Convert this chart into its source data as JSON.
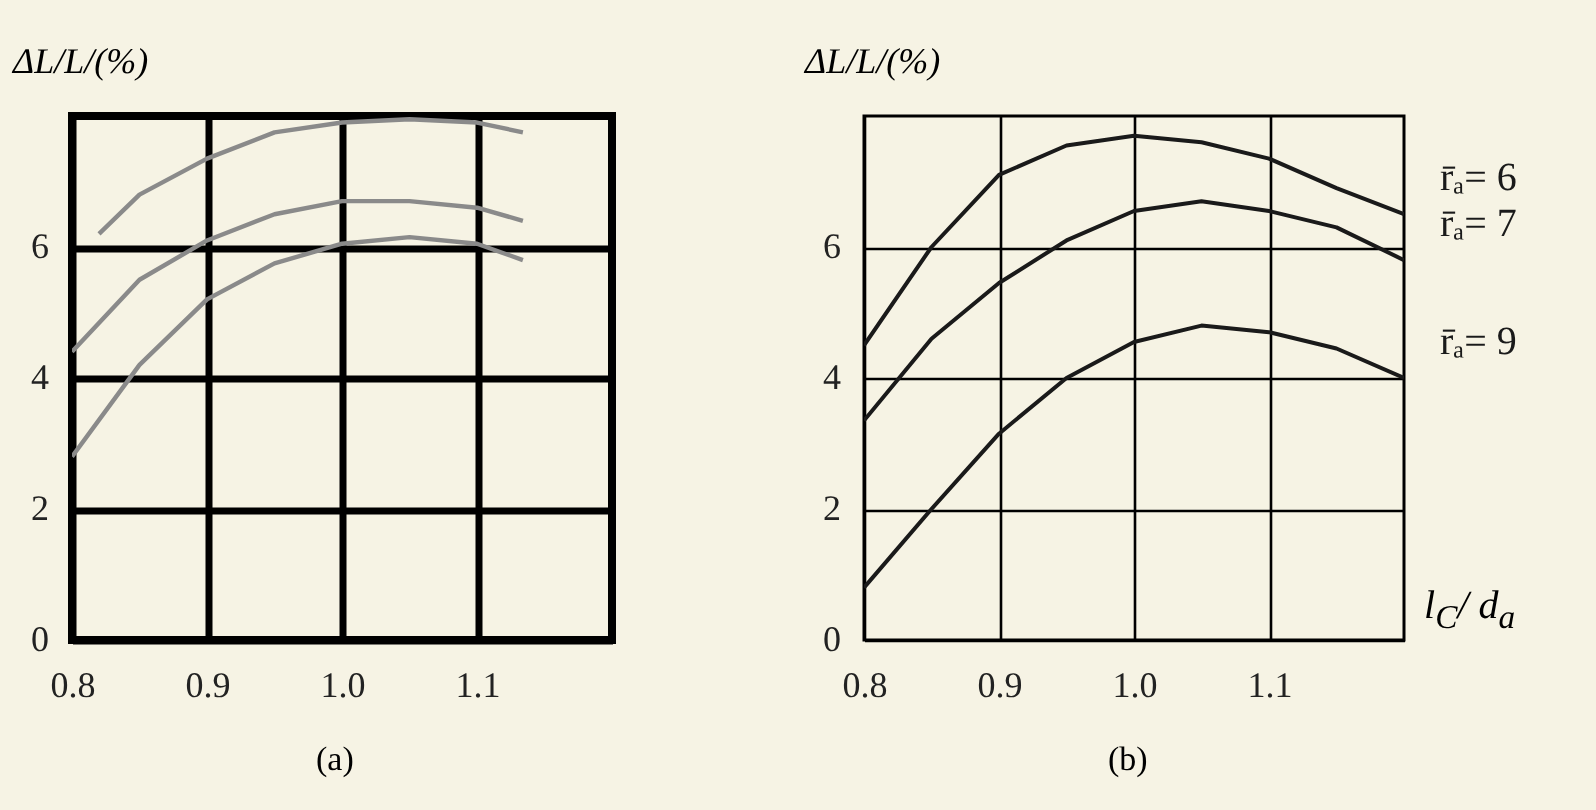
{
  "chart_data": [
    {
      "type": "line",
      "ylabel": "ΔL/L/(%)",
      "series": [
        {
          "color": "#8a8a8a",
          "x": [
            0.82,
            0.85,
            0.9,
            0.95,
            1.0,
            1.05,
            1.1,
            1.134
          ],
          "values": [
            6.2,
            6.8,
            7.35,
            7.75,
            7.9,
            7.95,
            7.9,
            7.75
          ]
        },
        {
          "color": "#8a8a8a",
          "x": [
            0.8,
            0.85,
            0.9,
            0.95,
            1.0,
            1.05,
            1.1,
            1.134
          ],
          "values": [
            4.4,
            5.5,
            6.1,
            6.5,
            6.7,
            6.7,
            6.6,
            6.4
          ]
        },
        {
          "color": "#8a8a8a",
          "x": [
            0.8,
            0.85,
            0.9,
            0.95,
            1.0,
            1.05,
            1.1,
            1.134
          ],
          "values": [
            2.8,
            4.2,
            5.2,
            5.75,
            6.05,
            6.15,
            6.05,
            5.8
          ]
        }
      ],
      "xlim": [
        0.8,
        1.2
      ],
      "xticks": [
        0.8,
        0.9,
        {
          "value": 1.0,
          "label": "1.0"
        },
        1.1
      ],
      "ylim": [
        0,
        8
      ],
      "yticks": [
        0,
        2,
        4,
        6
      ],
      "grid": true,
      "annotations": [
        "(a)"
      ]
    },
    {
      "type": "line",
      "ylabel": "ΔL/L/(%)",
      "xlabel": "l$_{C}$/ d$_{a}$",
      "x": [
        0.8,
        0.85,
        0.9,
        0.95,
        1.0,
        1.05,
        1.1,
        1.15,
        1.2
      ],
      "series": [
        {
          "name": "r̄ₐ= 6",
          "color": "#1a1a1a",
          "values": [
            4.5,
            6.0,
            7.1,
            7.55,
            7.7,
            7.6,
            7.35,
            6.9,
            6.5
          ]
        },
        {
          "name": "r̄ₐ= 7",
          "color": "#1a1a1a",
          "values": [
            3.35,
            4.6,
            5.45,
            6.1,
            6.55,
            6.7,
            6.55,
            6.3,
            5.8
          ]
        },
        {
          "name": "r̄ₐ= 9",
          "color": "#1a1a1a",
          "values": [
            0.8,
            2.0,
            3.15,
            4.0,
            4.55,
            4.8,
            4.7,
            4.45,
            4.0
          ]
        }
      ],
      "xlim": [
        0.8,
        1.2
      ],
      "xticks": [
        0.8,
        0.9,
        {
          "value": 1.0,
          "label": "1.0"
        },
        1.1
      ],
      "ylim": [
        0,
        8
      ],
      "yticks": [
        0,
        2,
        4,
        6
      ],
      "grid": true,
      "annotations": [
        "(b)"
      ]
    }
  ]
}
